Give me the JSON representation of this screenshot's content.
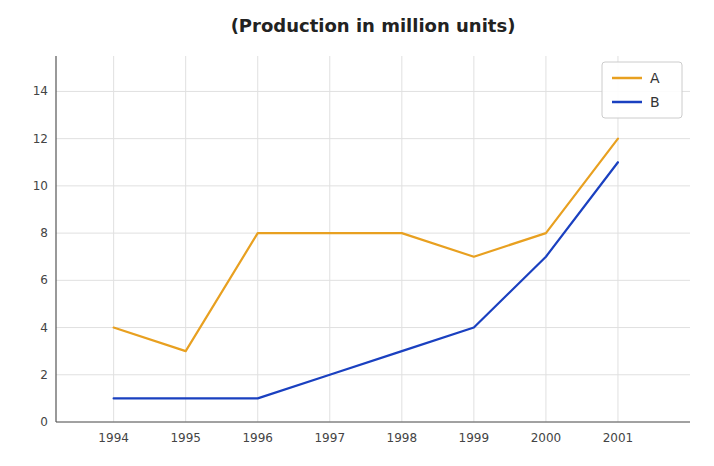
{
  "chart_data": {
    "type": "line",
    "title": "(Production in million units)",
    "x": [
      1994,
      1995,
      1996,
      1997,
      1998,
      1999,
      2000,
      2001
    ],
    "series": [
      {
        "name": "A",
        "color": "#E8A020",
        "values": [
          4,
          3,
          8,
          8,
          8,
          7,
          8,
          12
        ]
      },
      {
        "name": "B",
        "color": "#1a40c0",
        "values": [
          1,
          1,
          1,
          2,
          3,
          4,
          7,
          11
        ]
      }
    ],
    "xlim": [
      1993.2,
      2002.0
    ],
    "xticks": [
      1994,
      1995,
      1996,
      1997,
      1998,
      1999,
      2000,
      2001
    ],
    "ylim": [
      0,
      15.5
    ],
    "yticks": [
      0,
      2,
      4,
      6,
      8,
      10,
      12,
      14
    ],
    "grid": true,
    "legend": "upper right"
  }
}
